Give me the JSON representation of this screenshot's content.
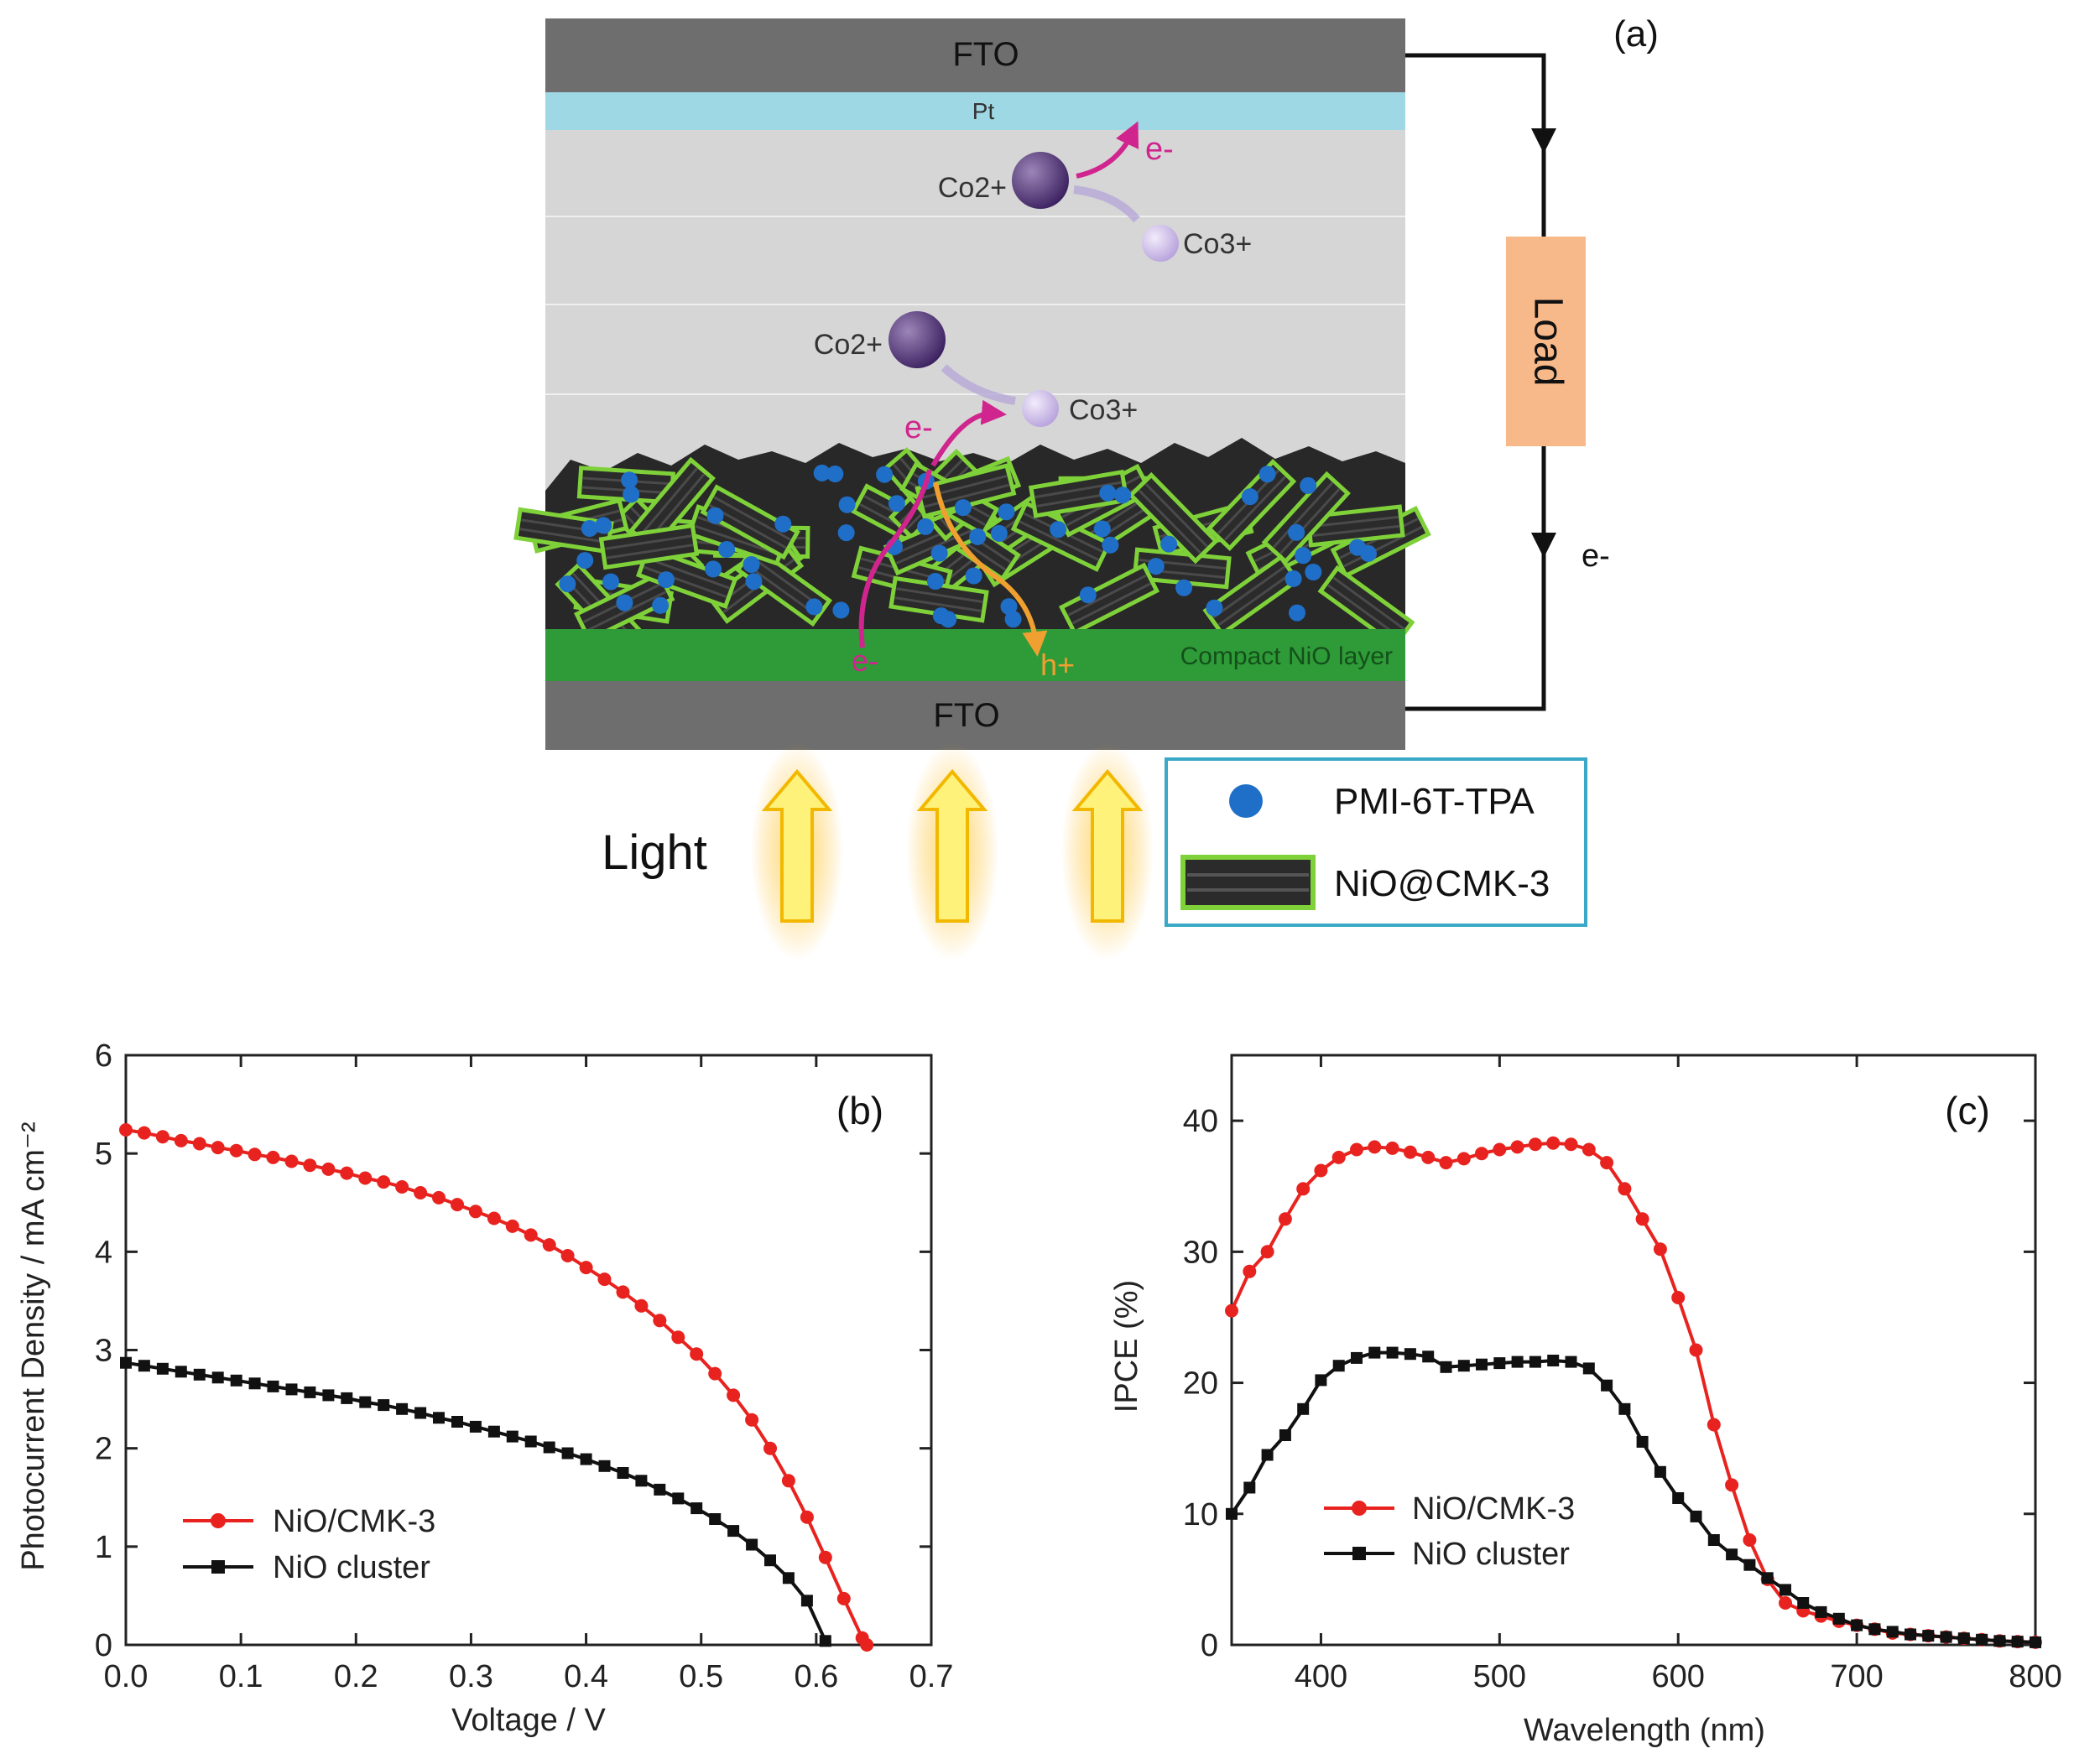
{
  "diagram": {
    "panel_label": "(a)",
    "fto_top": "FTO",
    "pt": "Pt",
    "fto_bottom": "FTO",
    "compact_layer": "Compact NiO layer",
    "load": "Load",
    "light": "Light",
    "electron": "e-",
    "hole": "h+",
    "co2_upper": "Co2+",
    "co3_upper": "Co3+",
    "co2_lower": "Co2+",
    "co3_lower": "Co3+",
    "legend": {
      "dye": "PMI-6T-TPA",
      "material": "NiO@CMK-3"
    },
    "colors": {
      "fto": "#6e6e6e",
      "pt": "#9ed8e4",
      "electrolyte": "#d6d6d6",
      "compact_nio": "#2e9a38",
      "load": "#f7b98a",
      "dye": "#1f6fc8",
      "electron_arrow": "#d0258e",
      "hole_arrow": "#f0a030",
      "co2": "#4e2f73",
      "co3": "#c7b6e6"
    }
  },
  "chart_data": [
    {
      "type": "line",
      "panel_label": "(b)",
      "xlabel": "Voltage / V",
      "ylabel": "Photocurrent Density / mA cm⁻²",
      "xlim": [
        0.0,
        0.7
      ],
      "ylim": [
        0,
        6
      ],
      "xticks": [
        "0.0",
        "0.1",
        "0.2",
        "0.3",
        "0.4",
        "0.5",
        "0.6",
        "0.7"
      ],
      "yticks": [
        "0",
        "1",
        "2",
        "3",
        "4",
        "5",
        "6"
      ],
      "legend_position": "bottom-left",
      "series": [
        {
          "name": "NiO/CMK-3",
          "color": "#e8231f",
          "marker": "circle",
          "x": [
            0.0,
            0.016,
            0.032,
            0.048,
            0.064,
            0.08,
            0.096,
            0.112,
            0.128,
            0.144,
            0.16,
            0.176,
            0.192,
            0.208,
            0.224,
            0.24,
            0.256,
            0.272,
            0.288,
            0.304,
            0.32,
            0.336,
            0.352,
            0.368,
            0.384,
            0.4,
            0.416,
            0.432,
            0.448,
            0.464,
            0.48,
            0.496,
            0.512,
            0.528,
            0.544,
            0.56,
            0.576,
            0.592,
            0.608,
            0.624,
            0.64,
            0.644
          ],
          "y": [
            5.24,
            5.21,
            5.17,
            5.13,
            5.1,
            5.06,
            5.03,
            4.99,
            4.96,
            4.92,
            4.88,
            4.84,
            4.8,
            4.75,
            4.71,
            4.66,
            4.6,
            4.55,
            4.48,
            4.41,
            4.34,
            4.26,
            4.17,
            4.07,
            3.96,
            3.84,
            3.72,
            3.59,
            3.45,
            3.3,
            3.13,
            2.96,
            2.76,
            2.54,
            2.29,
            2.0,
            1.67,
            1.3,
            0.89,
            0.47,
            0.07,
            0.0
          ]
        },
        {
          "name": "NiO cluster",
          "color": "#111111",
          "marker": "square",
          "x": [
            0.0,
            0.016,
            0.032,
            0.048,
            0.064,
            0.08,
            0.096,
            0.112,
            0.128,
            0.144,
            0.16,
            0.176,
            0.192,
            0.208,
            0.224,
            0.24,
            0.256,
            0.272,
            0.288,
            0.304,
            0.32,
            0.336,
            0.352,
            0.368,
            0.384,
            0.4,
            0.416,
            0.432,
            0.448,
            0.464,
            0.48,
            0.496,
            0.512,
            0.528,
            0.544,
            0.56,
            0.576,
            0.592,
            0.608
          ],
          "y": [
            2.87,
            2.84,
            2.81,
            2.78,
            2.75,
            2.72,
            2.69,
            2.66,
            2.63,
            2.6,
            2.57,
            2.54,
            2.51,
            2.47,
            2.44,
            2.4,
            2.36,
            2.31,
            2.27,
            2.22,
            2.17,
            2.12,
            2.07,
            2.01,
            1.95,
            1.89,
            1.82,
            1.75,
            1.67,
            1.58,
            1.49,
            1.39,
            1.28,
            1.16,
            1.02,
            0.86,
            0.68,
            0.45,
            0.04
          ]
        }
      ]
    },
    {
      "type": "line",
      "panel_label": "(c)",
      "xlabel": "Wavelength (nm)",
      "ylabel": "IPCE (%)",
      "xlim": [
        350,
        800
      ],
      "ylim": [
        0,
        45
      ],
      "xticks": [
        "400",
        "500",
        "600",
        "700",
        "800"
      ],
      "yticks": [
        "0",
        "10",
        "20",
        "30",
        "40"
      ],
      "legend_position": "bottom-left",
      "series": [
        {
          "name": "NiO/CMK-3",
          "color": "#e8231f",
          "marker": "circle",
          "x": [
            350,
            360,
            370,
            380,
            390,
            400,
            410,
            420,
            430,
            440,
            450,
            460,
            470,
            480,
            490,
            500,
            510,
            520,
            530,
            540,
            550,
            560,
            570,
            580,
            590,
            600,
            610,
            620,
            630,
            640,
            650,
            660,
            670,
            680,
            690,
            700,
            710,
            720,
            730,
            740,
            750,
            760,
            770,
            780,
            790,
            800
          ],
          "y": [
            25.5,
            28.5,
            30.0,
            32.5,
            34.8,
            36.2,
            37.2,
            37.8,
            38.0,
            37.9,
            37.6,
            37.2,
            36.8,
            37.1,
            37.5,
            37.8,
            38.0,
            38.2,
            38.3,
            38.2,
            37.8,
            36.8,
            34.8,
            32.5,
            30.2,
            26.5,
            22.5,
            16.8,
            12.2,
            8.0,
            5.0,
            3.2,
            2.6,
            2.2,
            1.8,
            1.5,
            1.2,
            0.9,
            0.8,
            0.7,
            0.6,
            0.5,
            0.4,
            0.3,
            0.25,
            0.2
          ]
        },
        {
          "name": "NiO cluster",
          "color": "#111111",
          "marker": "square",
          "x": [
            350,
            360,
            370,
            380,
            390,
            400,
            410,
            420,
            430,
            440,
            450,
            460,
            470,
            480,
            490,
            500,
            510,
            520,
            530,
            540,
            550,
            560,
            570,
            580,
            590,
            600,
            610,
            620,
            630,
            640,
            650,
            660,
            670,
            680,
            690,
            700,
            710,
            720,
            730,
            740,
            750,
            760,
            770,
            780,
            790,
            800
          ],
          "y": [
            10.0,
            12.0,
            14.5,
            16.0,
            18.0,
            20.2,
            21.3,
            21.9,
            22.3,
            22.3,
            22.2,
            22.0,
            21.2,
            21.3,
            21.4,
            21.5,
            21.6,
            21.6,
            21.7,
            21.6,
            21.1,
            19.8,
            18.0,
            15.5,
            13.2,
            11.2,
            9.8,
            8.0,
            6.9,
            6.1,
            5.1,
            4.2,
            3.2,
            2.5,
            2.0,
            1.5,
            1.2,
            1.0,
            0.8,
            0.7,
            0.6,
            0.5,
            0.4,
            0.3,
            0.25,
            0.2
          ]
        }
      ]
    }
  ]
}
